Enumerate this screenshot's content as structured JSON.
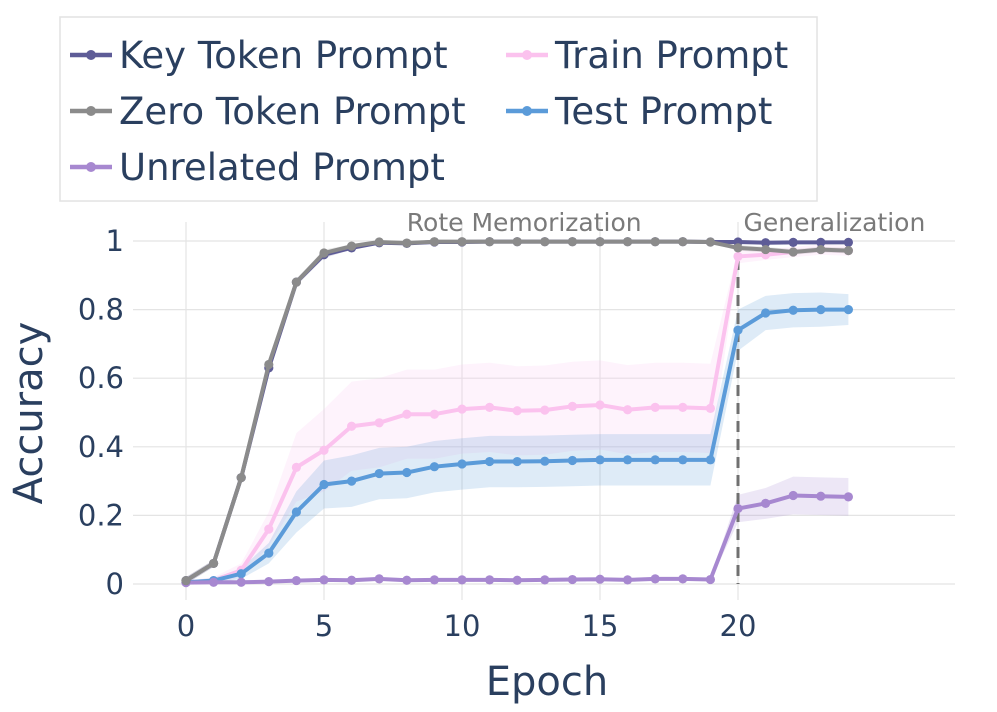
{
  "chart_data": {
    "type": "line",
    "title": "",
    "xlabel": "Epoch",
    "ylabel": "Accuracy",
    "xlim": [
      -1.9,
      27.6
    ],
    "ylim": [
      0,
      1
    ],
    "x_ticks": [
      "0",
      "5",
      "10",
      "15",
      "20"
    ],
    "y_ticks": [
      "0",
      "0.2",
      "0.4",
      "0.6",
      "0.8",
      "1"
    ],
    "grid": true,
    "legend_position": "top-left",
    "annotations": [
      {
        "text": "Rote Memorization",
        "x": 8,
        "y": 1.055
      },
      {
        "text": "Generalization",
        "x": 20.2,
        "y": 1.055
      }
    ],
    "vline": {
      "x": 20,
      "style": "dashed",
      "color": "#707070"
    },
    "series": [
      {
        "name": "Key Token Prompt",
        "color": "#5e5c97",
        "legend_col": 0,
        "x": [
          0,
          1,
          2,
          3,
          4,
          5,
          6,
          7,
          8,
          9,
          10,
          11,
          12,
          13,
          14,
          15,
          16,
          17,
          18,
          19,
          20,
          21,
          22,
          23,
          24
        ],
        "values": [
          0.01,
          0.06,
          0.31,
          0.63,
          0.88,
          0.96,
          0.98,
          0.995,
          0.993,
          0.997,
          0.997,
          0.998,
          0.998,
          0.998,
          0.998,
          0.998,
          0.998,
          0.998,
          0.998,
          0.997,
          0.997,
          0.995,
          0.996,
          0.996,
          0.996
        ],
        "band": [
          0.01,
          0.01,
          0.02,
          0.02,
          0.01,
          0.01,
          0.005,
          0.003,
          0.003,
          0.002,
          0.002,
          0.002,
          0.002,
          0.002,
          0.002,
          0.002,
          0.002,
          0.002,
          0.002,
          0.002,
          0.003,
          0.003,
          0.003,
          0.003,
          0.003
        ]
      },
      {
        "name": "Zero Token Prompt",
        "color": "#8b8b8b",
        "legend_col": 0,
        "x": [
          0,
          1,
          2,
          3,
          4,
          5,
          6,
          7,
          8,
          9,
          10,
          11,
          12,
          13,
          14,
          15,
          16,
          17,
          18,
          19,
          20,
          21,
          22,
          23,
          24
        ],
        "values": [
          0.01,
          0.06,
          0.31,
          0.64,
          0.88,
          0.965,
          0.985,
          0.997,
          0.994,
          0.998,
          0.998,
          0.998,
          0.998,
          0.998,
          0.998,
          0.998,
          0.998,
          0.998,
          0.998,
          0.997,
          0.98,
          0.975,
          0.968,
          0.975,
          0.972
        ],
        "band": [
          0.01,
          0.01,
          0.02,
          0.02,
          0.01,
          0.01,
          0.005,
          0.003,
          0.003,
          0.002,
          0.002,
          0.002,
          0.002,
          0.002,
          0.002,
          0.002,
          0.002,
          0.002,
          0.002,
          0.002,
          0.008,
          0.008,
          0.008,
          0.008,
          0.008
        ]
      },
      {
        "name": "Unrelated Prompt",
        "color": "#a788d0",
        "legend_col": 0,
        "x": [
          0,
          1,
          2,
          3,
          4,
          5,
          6,
          7,
          8,
          9,
          10,
          11,
          12,
          13,
          14,
          15,
          16,
          17,
          18,
          19,
          20,
          21,
          22,
          23,
          24
        ],
        "values": [
          0.004,
          0.005,
          0.005,
          0.007,
          0.01,
          0.012,
          0.011,
          0.015,
          0.011,
          0.012,
          0.012,
          0.012,
          0.011,
          0.012,
          0.013,
          0.014,
          0.012,
          0.015,
          0.015,
          0.013,
          0.22,
          0.235,
          0.258,
          0.256,
          0.254
        ],
        "band": [
          0.003,
          0.003,
          0.003,
          0.003,
          0.003,
          0.003,
          0.003,
          0.003,
          0.003,
          0.003,
          0.003,
          0.003,
          0.003,
          0.003,
          0.003,
          0.003,
          0.003,
          0.003,
          0.003,
          0.003,
          0.04,
          0.045,
          0.055,
          0.055,
          0.055
        ]
      },
      {
        "name": "Train Prompt",
        "color": "#fbc2ee",
        "legend_col": 1,
        "x": [
          0,
          1,
          2,
          3,
          4,
          5,
          6,
          7,
          8,
          9,
          10,
          11,
          12,
          13,
          14,
          15,
          16,
          17,
          18,
          19,
          20,
          21,
          22,
          23,
          24
        ],
        "values": [
          0.005,
          0.01,
          0.04,
          0.16,
          0.34,
          0.39,
          0.46,
          0.47,
          0.495,
          0.495,
          0.51,
          0.515,
          0.505,
          0.507,
          0.518,
          0.522,
          0.508,
          0.515,
          0.515,
          0.512,
          0.955,
          0.96,
          0.968,
          0.975,
          0.972
        ],
        "band": [
          0.005,
          0.01,
          0.02,
          0.05,
          0.1,
          0.12,
          0.13,
          0.13,
          0.13,
          0.13,
          0.13,
          0.13,
          0.13,
          0.13,
          0.13,
          0.13,
          0.13,
          0.13,
          0.13,
          0.13,
          0.02,
          0.015,
          0.015,
          0.015,
          0.015
        ]
      },
      {
        "name": "Test Prompt",
        "color": "#5b9bd9",
        "legend_col": 1,
        "x": [
          0,
          1,
          2,
          3,
          4,
          5,
          6,
          7,
          8,
          9,
          10,
          11,
          12,
          13,
          14,
          15,
          16,
          17,
          18,
          19,
          20,
          21,
          22,
          23,
          24
        ],
        "values": [
          0.005,
          0.01,
          0.03,
          0.09,
          0.21,
          0.29,
          0.3,
          0.322,
          0.325,
          0.342,
          0.35,
          0.357,
          0.357,
          0.358,
          0.36,
          0.362,
          0.362,
          0.362,
          0.362,
          0.362,
          0.74,
          0.79,
          0.798,
          0.8,
          0.8
        ],
        "band": [
          0.005,
          0.008,
          0.015,
          0.03,
          0.06,
          0.07,
          0.075,
          0.075,
          0.075,
          0.075,
          0.075,
          0.075,
          0.075,
          0.075,
          0.075,
          0.075,
          0.075,
          0.075,
          0.075,
          0.075,
          0.06,
          0.05,
          0.05,
          0.05,
          0.045
        ]
      }
    ]
  }
}
